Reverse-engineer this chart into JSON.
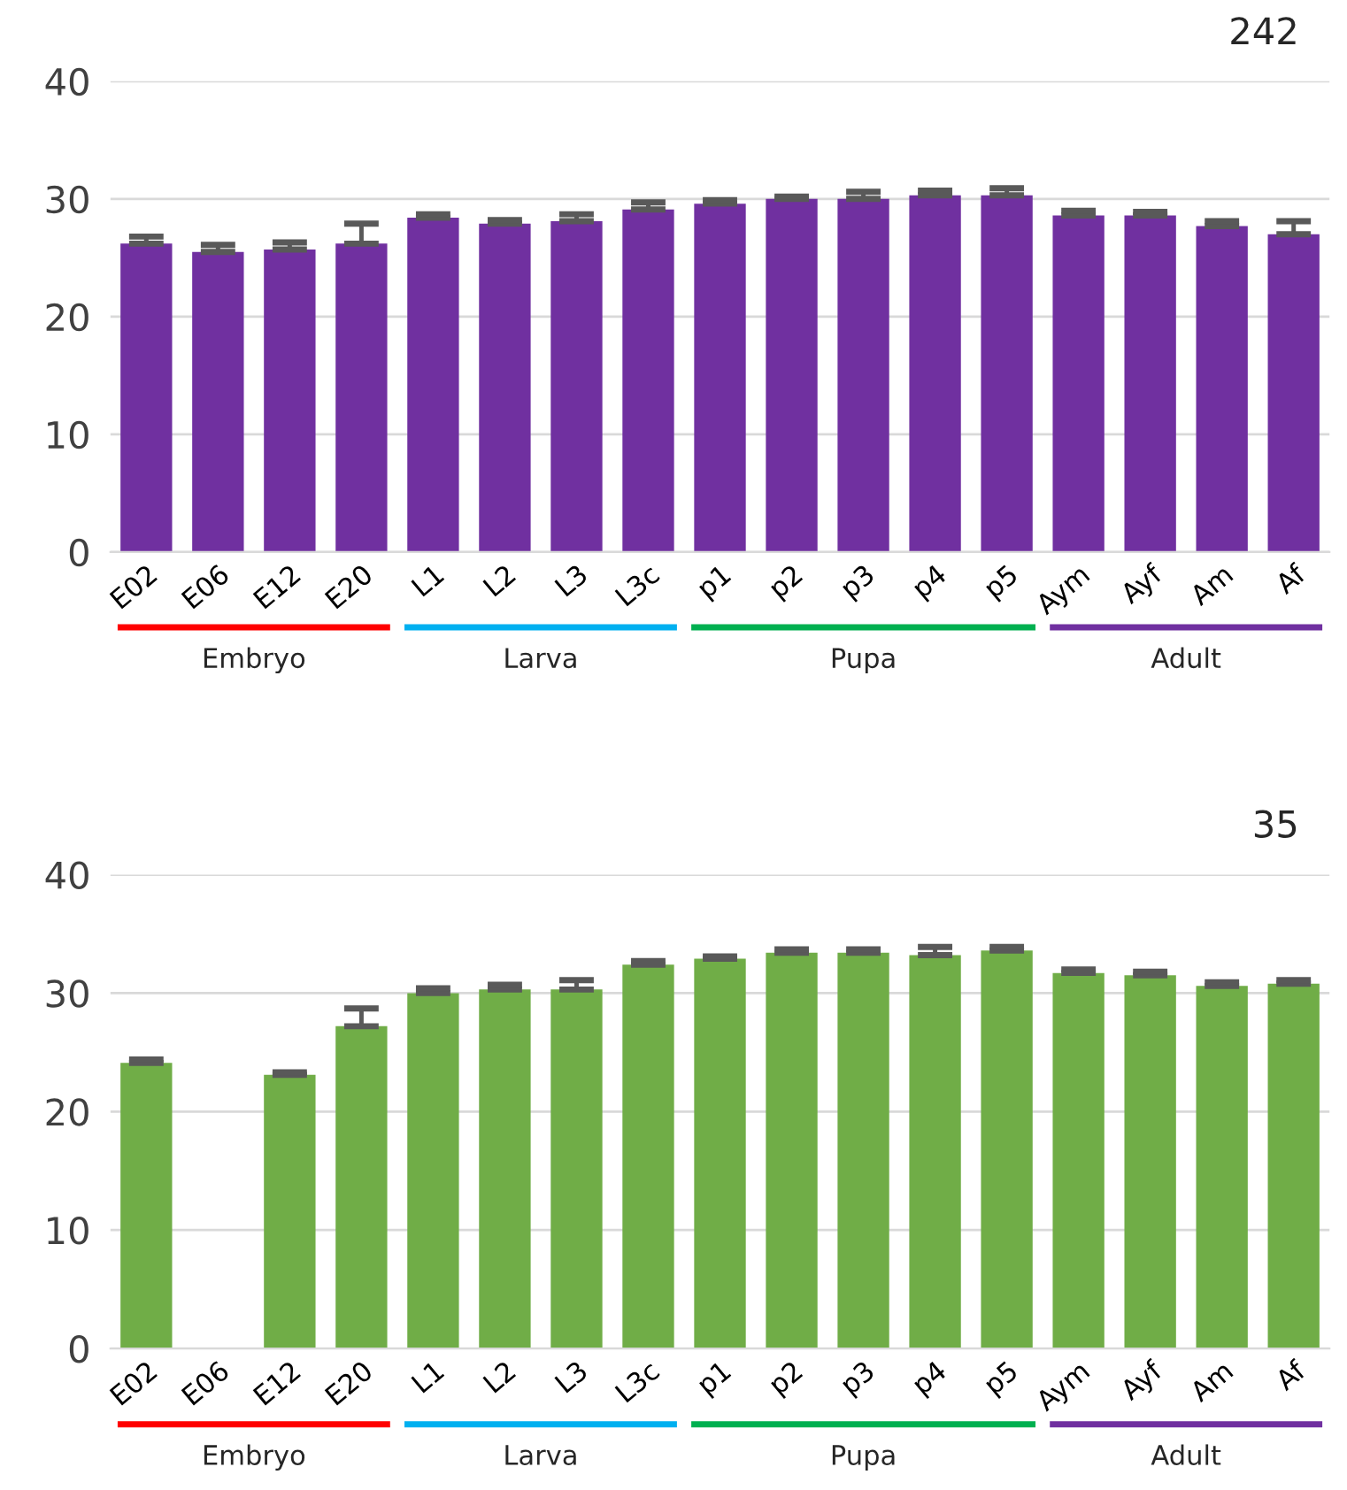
{
  "chart_data": [
    {
      "type": "bar",
      "title": "242",
      "categories": [
        "E02",
        "E06",
        "E12",
        "E20",
        "L1",
        "L2",
        "L3",
        "L3c",
        "p1",
        "p2",
        "p3",
        "p4",
        "p5",
        "Aym",
        "Ayf",
        "Am",
        "Af"
      ],
      "values": [
        26.2,
        25.5,
        25.7,
        26.2,
        28.4,
        27.9,
        28.1,
        29.1,
        29.6,
        30.0,
        30.0,
        30.3,
        30.3,
        28.6,
        28.6,
        27.7,
        27.0
      ],
      "errors": [
        0.6,
        0.6,
        0.6,
        1.7,
        0.3,
        0.3,
        0.6,
        0.6,
        0.3,
        0.2,
        0.6,
        0.4,
        0.6,
        0.4,
        0.3,
        0.4,
        1.1
      ],
      "color": "#7030a0",
      "ylim": [
        0,
        40
      ],
      "yticks": [
        0,
        10,
        20,
        30,
        40
      ],
      "grid": "y",
      "annotations": [
        "Embryo",
        "Larva",
        "Pupa",
        "Adult"
      ]
    },
    {
      "type": "bar",
      "title": "35",
      "categories": [
        "E02",
        "E06",
        "E12",
        "E20",
        "L1",
        "L2",
        "L3",
        "L3c",
        "p1",
        "p2",
        "p3",
        "p4",
        "p5",
        "Aym",
        "Ayf",
        "Am",
        "Af"
      ],
      "values": [
        24.1,
        null,
        23.1,
        27.2,
        30.0,
        30.3,
        30.3,
        32.4,
        32.9,
        33.4,
        33.4,
        33.2,
        33.6,
        31.7,
        31.5,
        30.6,
        30.8
      ],
      "errors": [
        0.3,
        null,
        0.2,
        1.5,
        0.4,
        0.4,
        0.8,
        0.3,
        0.2,
        0.3,
        0.3,
        0.7,
        0.3,
        0.3,
        0.3,
        0.3,
        0.3
      ],
      "color": "#70ad47",
      "ylim": [
        0,
        40
      ],
      "yticks": [
        0,
        10,
        20,
        30,
        40
      ],
      "grid": "y",
      "annotations": [
        "Embryo",
        "Larva",
        "Pupa",
        "Adult"
      ]
    }
  ]
}
